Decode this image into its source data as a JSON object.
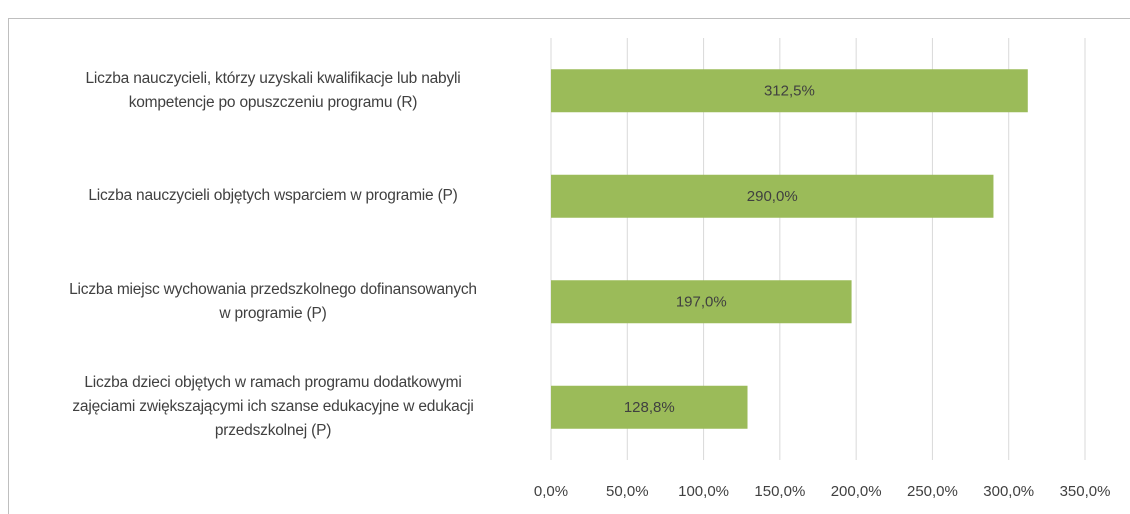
{
  "chart_data": {
    "type": "bar",
    "orientation": "horizontal",
    "categories": [
      "Liczba nauczycieli, którzy uzyskali kwalifikacje lub nabyli\nkompetencje po opuszczeniu programu (R)",
      "Liczba nauczycieli objętych wsparciem w programie (P)",
      "Liczba miejsc wychowania przedszkolnego dofinansowanych\nw programie (P)",
      "Liczba dzieci objętych w ramach programu dodatkowymi\nzajęciami zwiększającymi ich szanse edukacyjne w edukacji\nprzedszkolnej (P)"
    ],
    "values": [
      312.5,
      290.0,
      197.0,
      128.8
    ],
    "value_labels": [
      "312,5%",
      "290,0%",
      "197,0%",
      "128,8%"
    ],
    "color": "#9bbb59",
    "xlim": [
      0,
      350
    ],
    "xticks": [
      {
        "value": 0,
        "label": "0,0%"
      },
      {
        "value": 50,
        "label": "50,0%"
      },
      {
        "value": 100,
        "label": "100,0%"
      },
      {
        "value": 150,
        "label": "150,0%"
      },
      {
        "value": 200,
        "label": "200,0%"
      },
      {
        "value": 250,
        "label": "250,0%"
      },
      {
        "value": 300,
        "label": "300,0%"
      },
      {
        "value": 350,
        "label": "350,0%"
      }
    ],
    "grid": true
  }
}
